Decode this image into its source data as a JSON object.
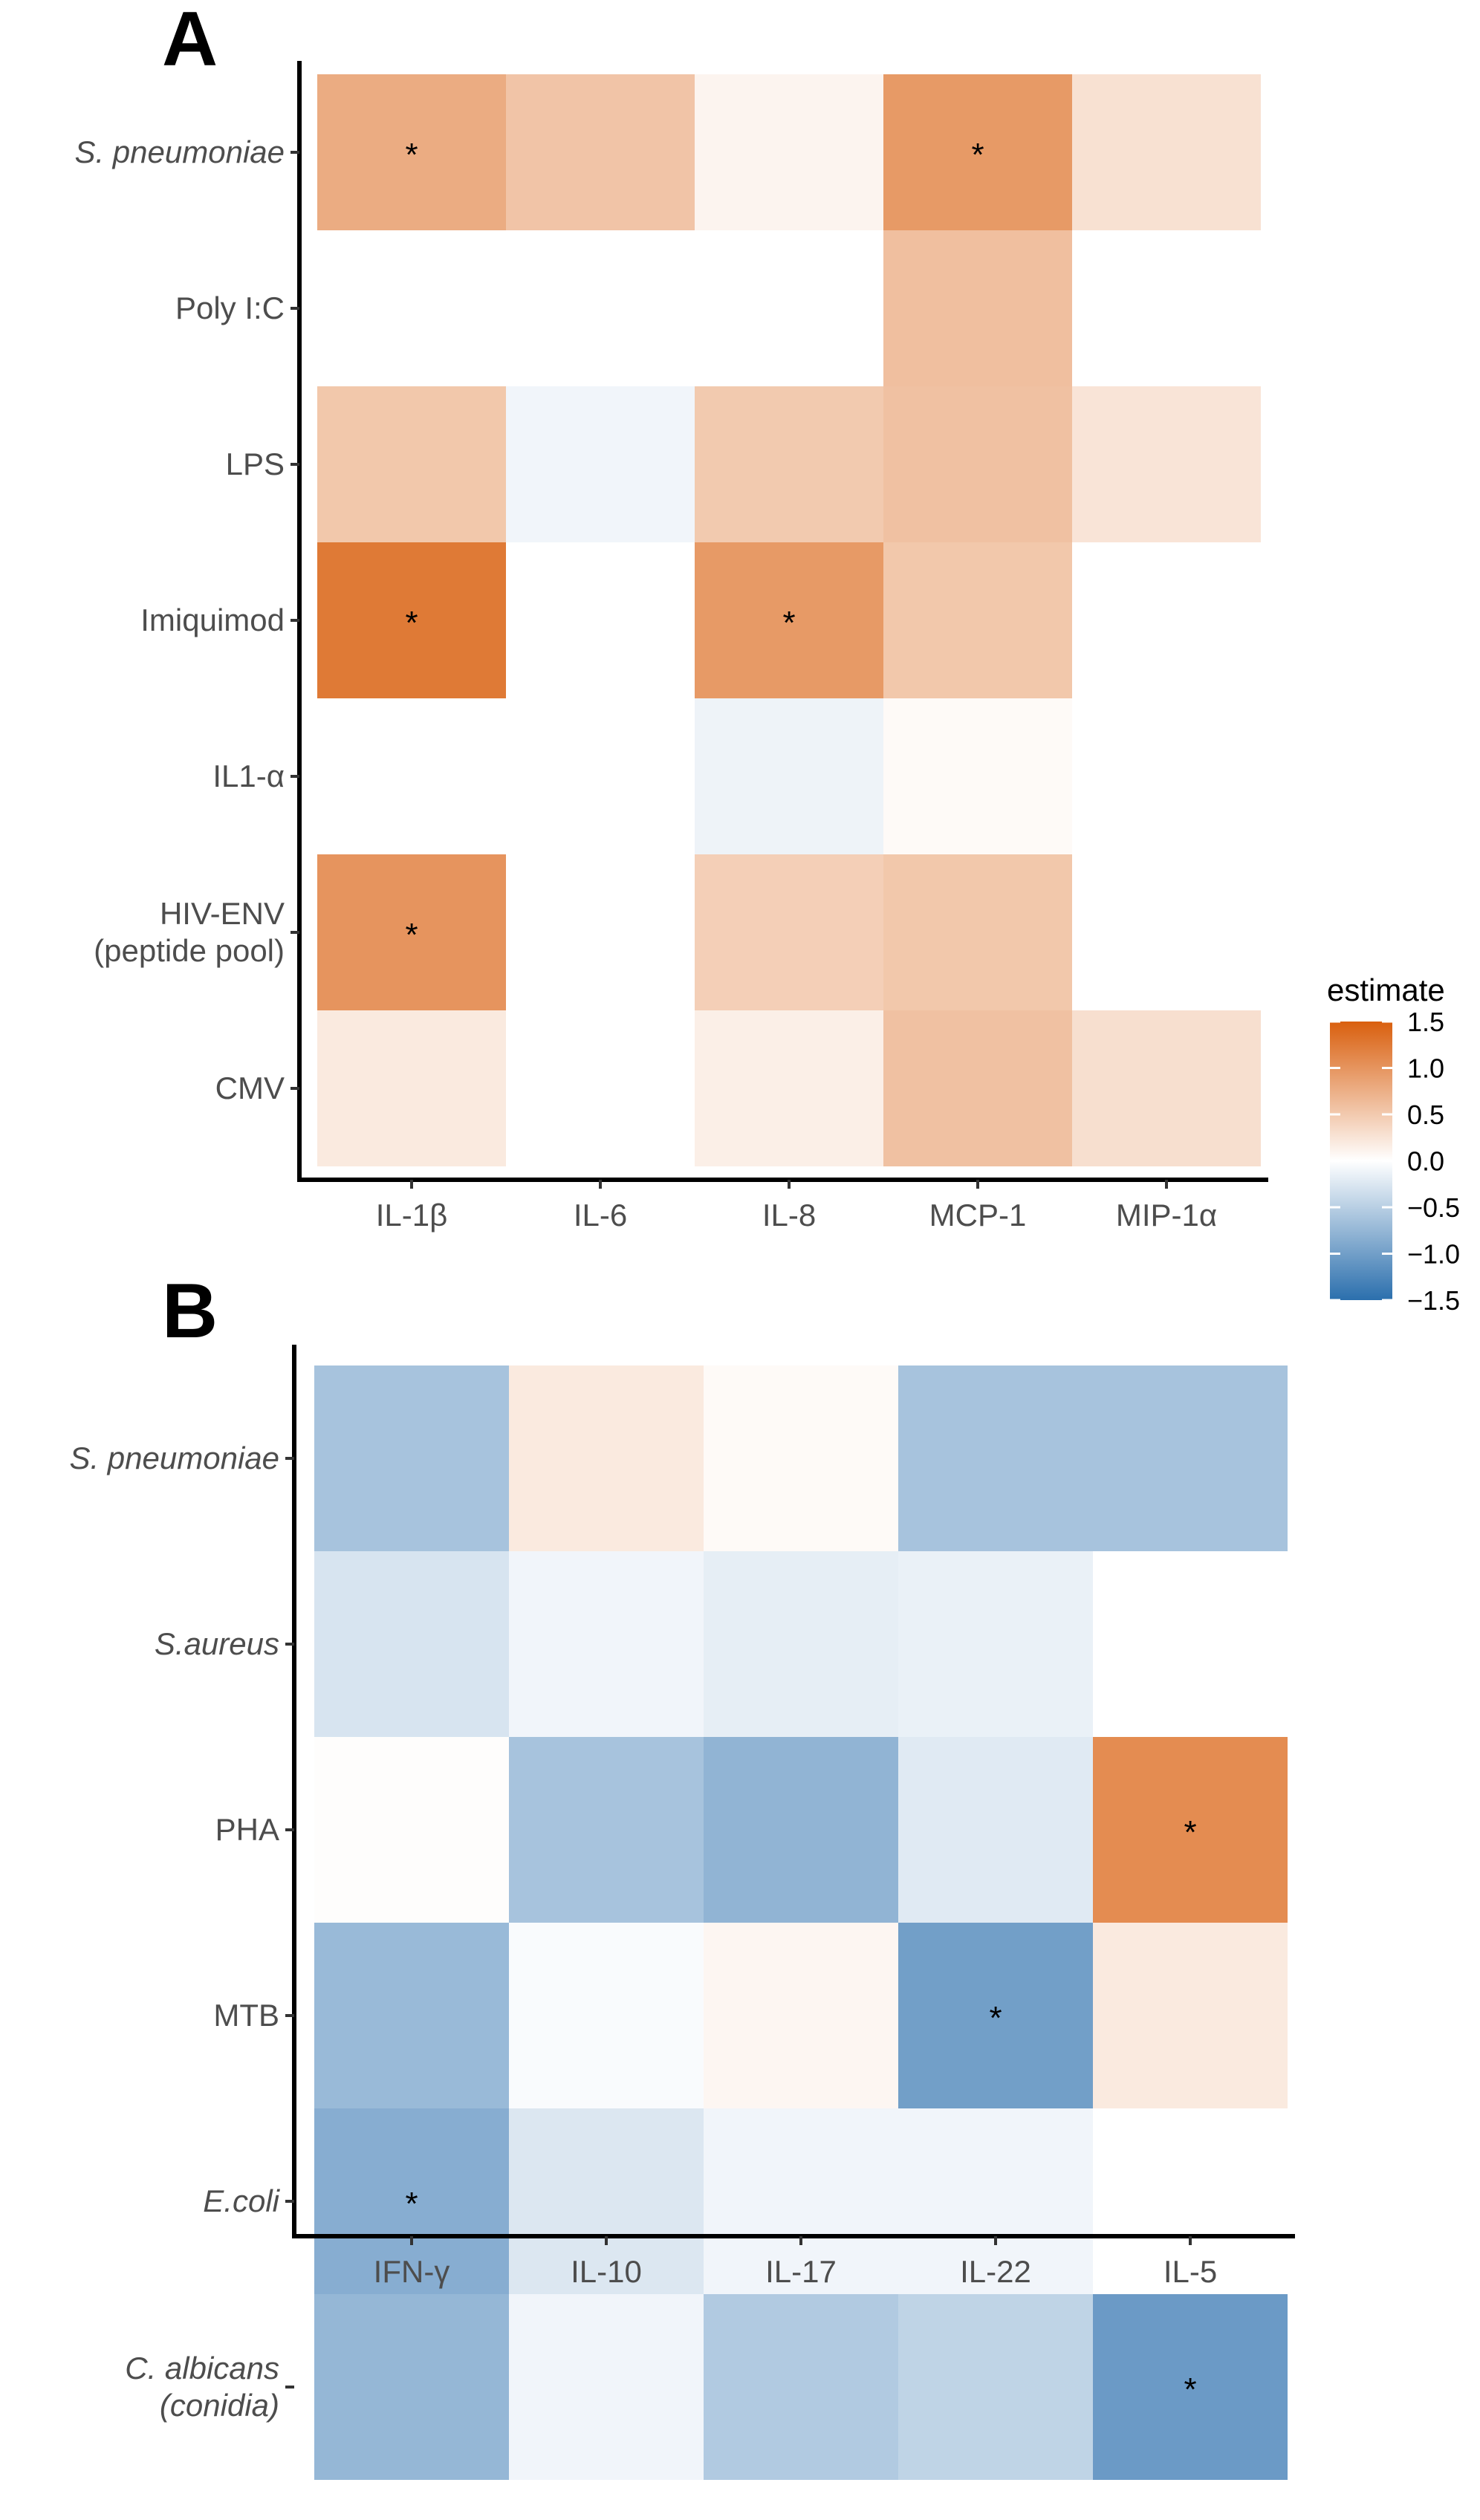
{
  "chart_data": [
    {
      "type": "heatmap",
      "panel_label": "A",
      "columns": [
        "IL-1β",
        "IL-6",
        "IL-8",
        "MCP-1",
        "MIP-1α"
      ],
      "rows": [
        {
          "label": [
            "S. pneumoniae"
          ],
          "italic": true
        },
        {
          "label": [
            "Poly I:C"
          ],
          "italic": false
        },
        {
          "label": [
            "LPS"
          ],
          "italic": false
        },
        {
          "label": [
            "Imiquimod"
          ],
          "italic": false
        },
        {
          "label": [
            "IL1-α"
          ],
          "italic": false
        },
        {
          "label": [
            "HIV-ENV",
            "(peptide pool)"
          ],
          "italic": false
        },
        {
          "label": [
            "CMV"
          ],
          "italic": false
        }
      ],
      "values": [
        [
          0.78,
          0.55,
          0.1,
          0.95,
          0.28
        ],
        [
          null,
          null,
          null,
          0.6,
          null
        ],
        [
          0.52,
          -0.1,
          0.5,
          0.58,
          0.25
        ],
        [
          1.25,
          null,
          0.95,
          0.52,
          null
        ],
        [
          null,
          null,
          -0.12,
          0.05,
          null
        ],
        [
          1.0,
          null,
          0.45,
          0.52,
          null
        ],
        [
          0.2,
          null,
          0.15,
          0.58,
          0.3
        ]
      ],
      "significant": [
        [
          true,
          false,
          false,
          true,
          false
        ],
        [
          false,
          false,
          false,
          false,
          false
        ],
        [
          false,
          false,
          false,
          false,
          false
        ],
        [
          true,
          false,
          true,
          false,
          false
        ],
        [
          false,
          false,
          false,
          false,
          false
        ],
        [
          true,
          false,
          false,
          false,
          false
        ],
        [
          false,
          false,
          false,
          false,
          false
        ]
      ],
      "significance_marker": "*"
    },
    {
      "type": "heatmap",
      "panel_label": "B",
      "columns": [
        "IFN-γ",
        "IL-10",
        "IL-17",
        "IL-22",
        "IL-5"
      ],
      "rows": [
        {
          "label": [
            "S. pneumoniae"
          ],
          "italic": true
        },
        {
          "label": [
            "S.aureus"
          ],
          "italic": true
        },
        {
          "label": [
            "PHA"
          ],
          "italic": false
        },
        {
          "label": [
            "MTB"
          ],
          "italic": false
        },
        {
          "label": [
            "E.coli"
          ],
          "italic": true
        },
        {
          "label": [
            "C. albicans",
            "(conidia)"
          ],
          "italic": true
        }
      ],
      "values": [
        [
          -0.62,
          0.2,
          0.05,
          -0.62,
          -0.62
        ],
        [
          -0.28,
          -0.1,
          -0.18,
          -0.15,
          null
        ],
        [
          0.02,
          -0.62,
          -0.78,
          -0.22,
          1.08
        ],
        [
          -0.72,
          -0.04,
          0.08,
          -1.0,
          0.2
        ],
        [
          -0.85,
          -0.25,
          -0.1,
          -0.1,
          null
        ],
        [
          -0.75,
          -0.1,
          -0.55,
          -0.45,
          -1.05
        ]
      ],
      "significant": [
        [
          false,
          false,
          false,
          false,
          false
        ],
        [
          false,
          false,
          false,
          false,
          false
        ],
        [
          false,
          false,
          false,
          false,
          true
        ],
        [
          false,
          false,
          false,
          true,
          false
        ],
        [
          true,
          false,
          false,
          false,
          false
        ],
        [
          false,
          false,
          false,
          false,
          true
        ]
      ],
      "significance_marker": "*"
    }
  ],
  "legend": {
    "title": "estimate",
    "limits": [
      -1.5,
      1.5
    ],
    "ticks": [
      1.5,
      1.0,
      0.5,
      0.0,
      -0.5,
      -1.0,
      -1.5
    ],
    "tick_labels": [
      "1.5",
      "1.0",
      "0.5",
      "0.0",
      "−0.5",
      "−1.0",
      "−1.5"
    ],
    "colors": {
      "high": "#d95f0e",
      "mid": "#ffffff",
      "low": "#2b6fad"
    }
  }
}
